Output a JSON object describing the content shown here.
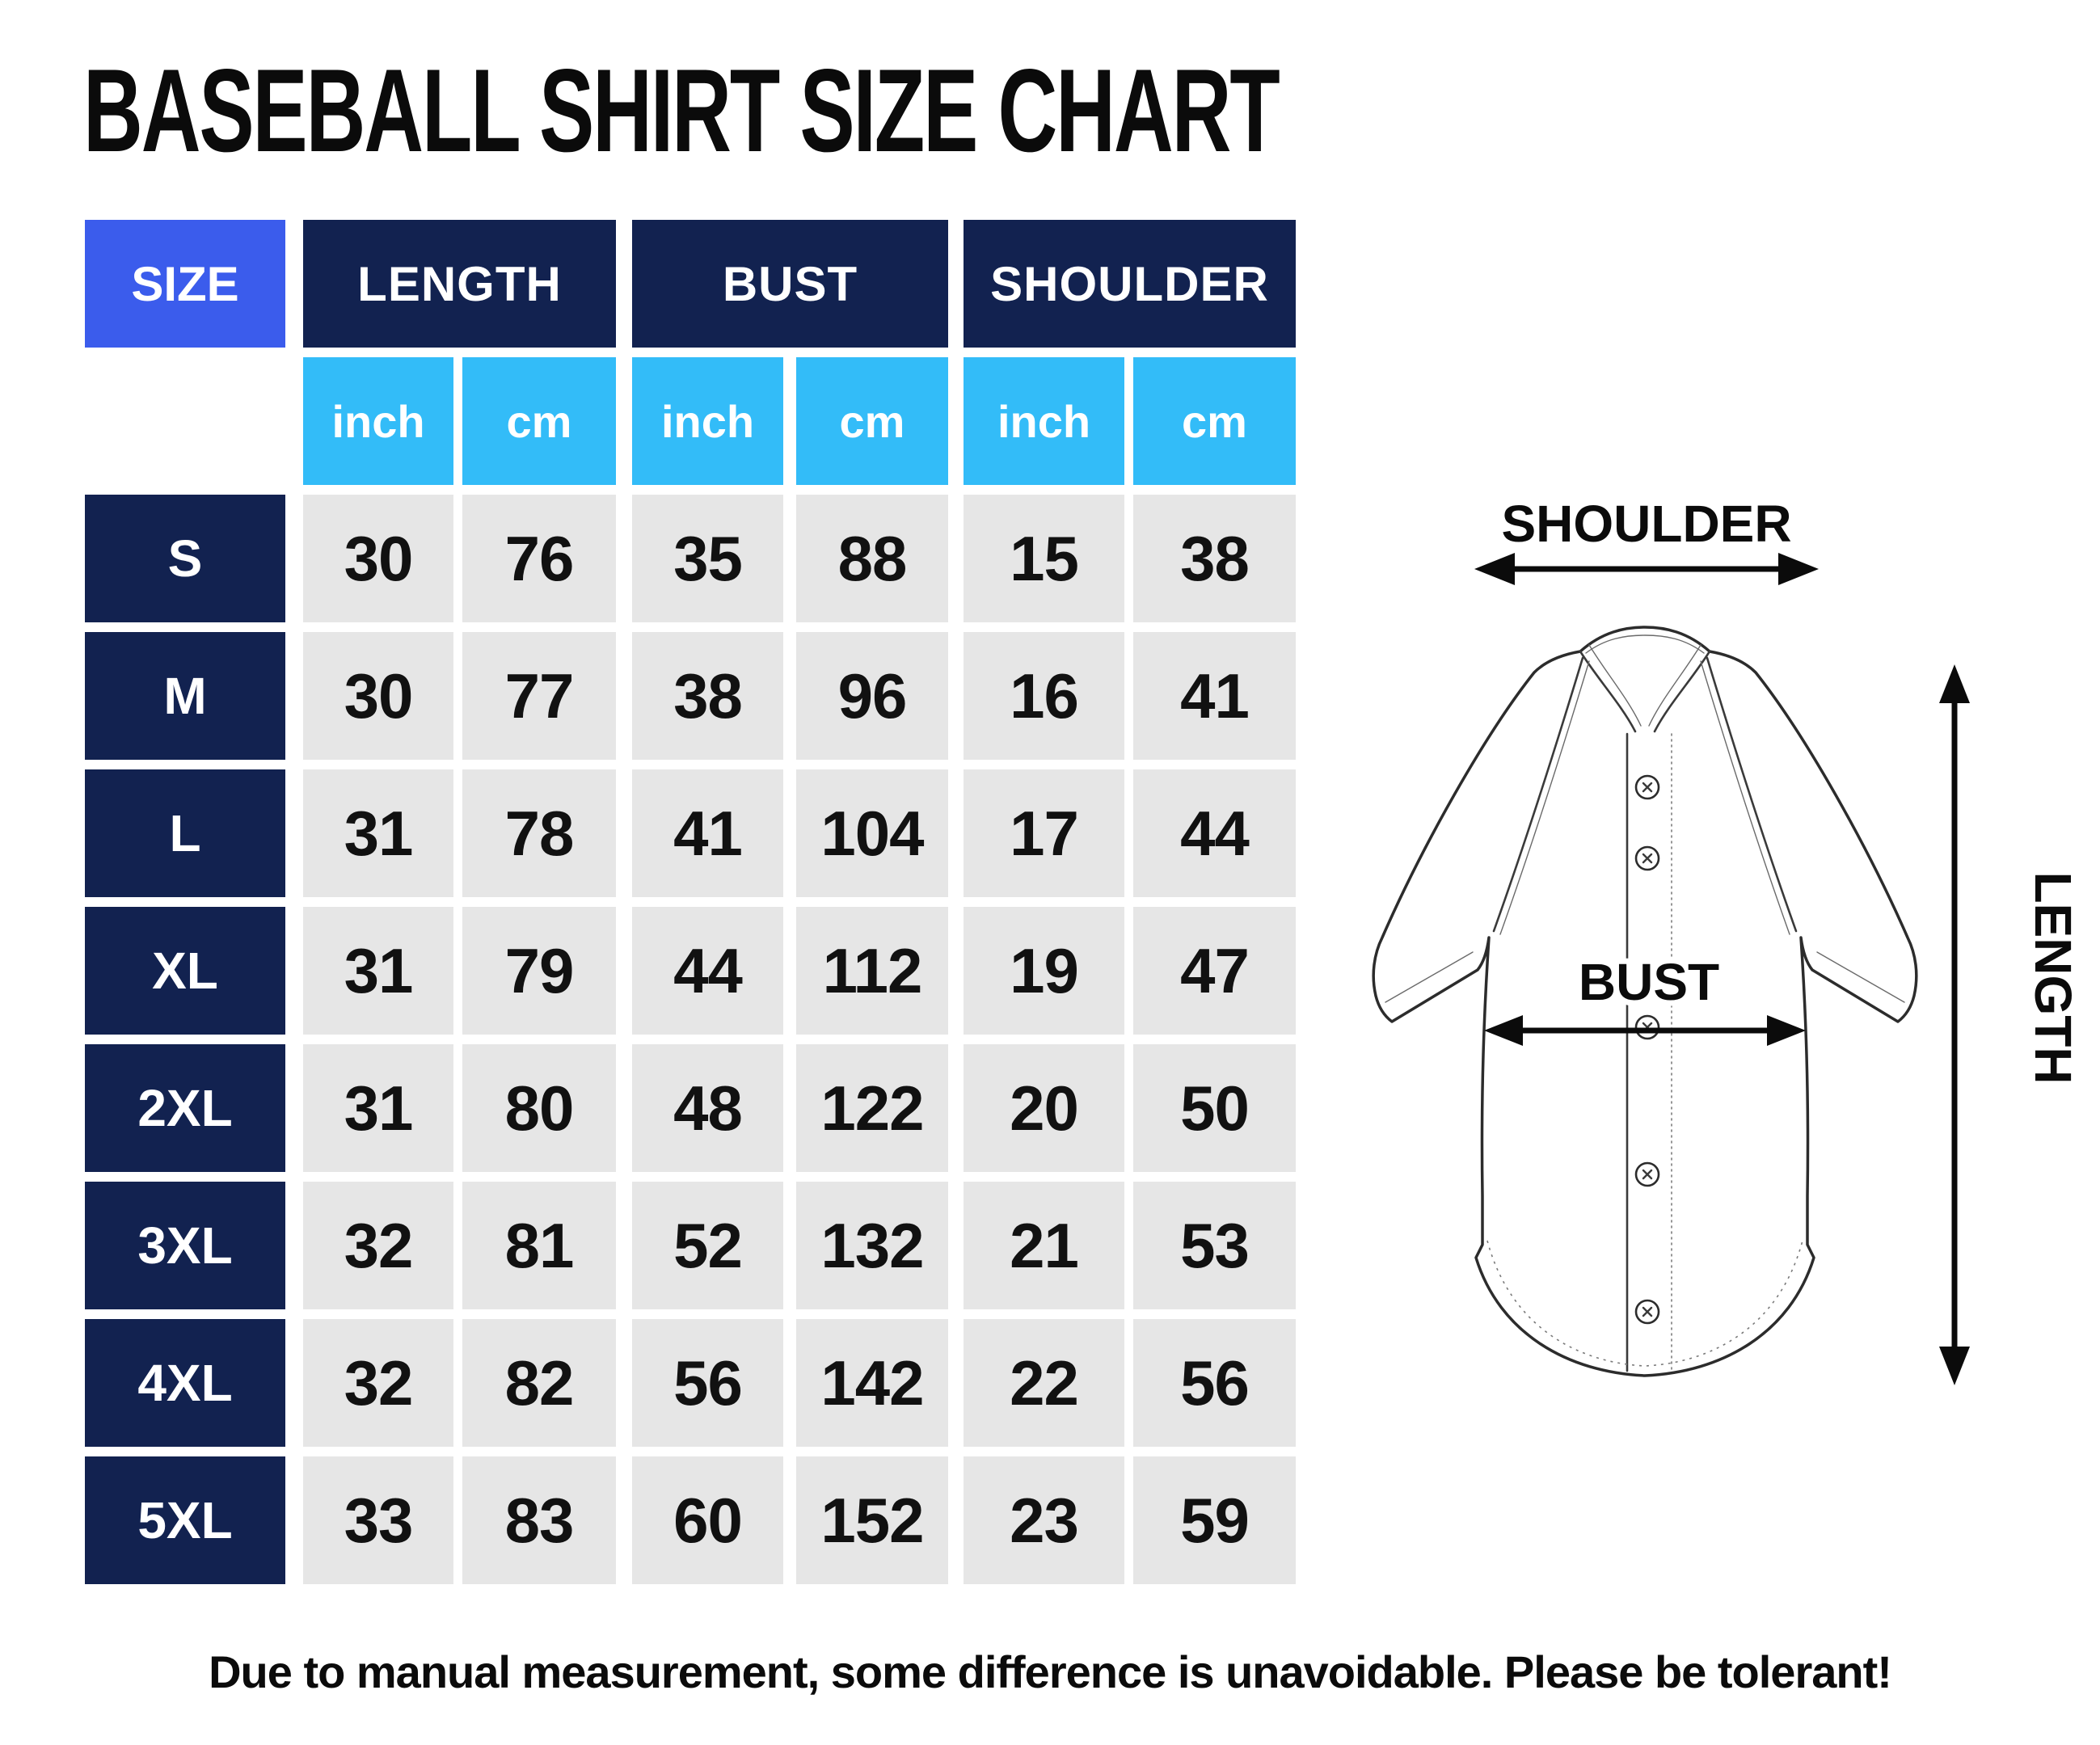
{
  "title": "BASEBALL SHIRT SIZE CHART",
  "note": "Due to manual measurement, some difference is unavoidable. Please be tolerant!",
  "colors": {
    "accent_blue": "#3B5CEC",
    "navy": "#122250",
    "sky_blue": "#33BCF8",
    "cell_gray": "#E6E6E6",
    "text_black": "#0B0B0B"
  },
  "table": {
    "corner_label": "SIZE",
    "group_headers": [
      "LENGTH",
      "BUST",
      "SHOULDER"
    ],
    "unit_headers": [
      "inch",
      "cm",
      "inch",
      "cm",
      "inch",
      "cm"
    ]
  },
  "diagram": {
    "shoulder_label": "SHOULDER",
    "bust_label": "BUST",
    "length_label": "LENGTH"
  },
  "chart_data": {
    "type": "table",
    "title": "BASEBALL SHIRT SIZE CHART",
    "columns": [
      "SIZE",
      "LENGTH inch",
      "LENGTH cm",
      "BUST inch",
      "BUST cm",
      "SHOULDER inch",
      "SHOULDER cm"
    ],
    "rows": [
      [
        "S",
        30,
        76,
        35,
        88,
        15,
        38
      ],
      [
        "M",
        30,
        77,
        38,
        96,
        16,
        41
      ],
      [
        "L",
        31,
        78,
        41,
        104,
        17,
        44
      ],
      [
        "XL",
        31,
        79,
        44,
        112,
        19,
        47
      ],
      [
        "2XL",
        31,
        80,
        48,
        122,
        20,
        50
      ],
      [
        "3XL",
        32,
        81,
        52,
        132,
        21,
        53
      ],
      [
        "4XL",
        32,
        82,
        56,
        142,
        22,
        56
      ],
      [
        "5XL",
        33,
        83,
        60,
        152,
        23,
        59
      ]
    ],
    "note": "Due to manual measurement, some difference is unavoidable. Please be tolerant!"
  }
}
